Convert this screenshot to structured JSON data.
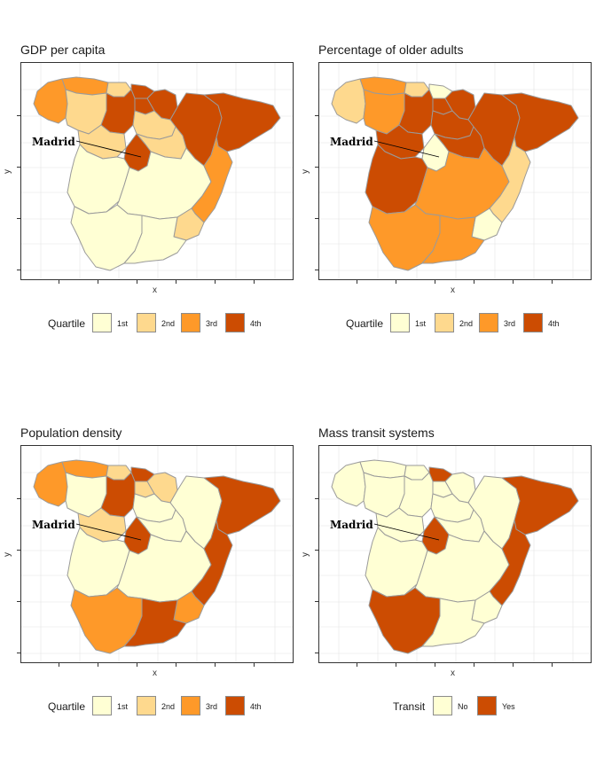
{
  "palette": {
    "q1": "#FFFFD4",
    "q2": "#FED98E",
    "q3": "#FE9929",
    "q4": "#CC4C02",
    "border": "#9a9a9a",
    "grid": "#ebebeb"
  },
  "annotation": {
    "label": "Madrid"
  },
  "axes": {
    "x_label": "x",
    "y_label": "y"
  },
  "panels": [
    {
      "title": "GDP per capita",
      "legend": {
        "title": "Quartile",
        "items": [
          {
            "label": "1st",
            "key": "q1"
          },
          {
            "label": "2nd",
            "key": "q2"
          },
          {
            "label": "3rd",
            "key": "q3"
          },
          {
            "label": "4th",
            "key": "q4"
          }
        ]
      },
      "regions": {
        "galicia": "q3",
        "asturias": "q3",
        "cantabria": "q2",
        "basque": "q4",
        "navarra": "q4",
        "rioja": "q4",
        "aragon": "q4",
        "catalonia": "q4",
        "leon": "q2",
        "burgos": "q4",
        "valladolid": "q2",
        "soria": "q2",
        "madrid": "q4",
        "extremadura": "q1",
        "castilla_mancha": "q1",
        "valencia": "q3",
        "andalusia_w": "q1",
        "andalusia_e": "q1",
        "murcia": "q2",
        "guadalajara": "q2"
      }
    },
    {
      "title": "Percentage of older adults",
      "legend": {
        "title": "Quartile",
        "items": [
          {
            "label": "1st",
            "key": "q1"
          },
          {
            "label": "2nd",
            "key": "q2"
          },
          {
            "label": "3rd",
            "key": "q3"
          },
          {
            "label": "4th",
            "key": "q4"
          }
        ]
      },
      "regions": {
        "galicia": "q2",
        "asturias": "q3",
        "cantabria": "q2",
        "basque": "q1",
        "navarra": "q4",
        "rioja": "q4",
        "aragon": "q4",
        "catalonia": "q4",
        "leon": "q3",
        "burgos": "q4",
        "valladolid": "q4",
        "soria": "q4",
        "madrid": "q1",
        "extremadura": "q4",
        "castilla_mancha": "q3",
        "valencia": "q2",
        "andalusia_w": "q3",
        "andalusia_e": "q3",
        "murcia": "q1",
        "guadalajara": "q4"
      }
    },
    {
      "title": "Population density",
      "legend": {
        "title": "Quartile",
        "items": [
          {
            "label": "1st",
            "key": "q1"
          },
          {
            "label": "2nd",
            "key": "q2"
          },
          {
            "label": "3rd",
            "key": "q3"
          },
          {
            "label": "4th",
            "key": "q4"
          }
        ]
      },
      "regions": {
        "galicia": "q3",
        "asturias": "q3",
        "cantabria": "q2",
        "basque": "q4",
        "navarra": "q2",
        "rioja": "q2",
        "aragon": "q1",
        "catalonia": "q4",
        "leon": "q1",
        "burgos": "q4",
        "valladolid": "q2",
        "soria": "q1",
        "madrid": "q4",
        "extremadura": "q1",
        "castilla_mancha": "q1",
        "valencia": "q4",
        "andalusia_w": "q3",
        "andalusia_e": "q4",
        "murcia": "q3",
        "guadalajara": "q1"
      }
    },
    {
      "title": "Mass transit systems",
      "legend": {
        "title": "Transit",
        "items": [
          {
            "label": "No",
            "key": "q1"
          },
          {
            "label": "Yes",
            "key": "q4"
          }
        ]
      },
      "regions": {
        "galicia": "q1",
        "asturias": "q1",
        "cantabria": "q1",
        "basque": "q4",
        "navarra": "q1",
        "rioja": "q1",
        "aragon": "q1",
        "catalonia": "q4",
        "leon": "q1",
        "burgos": "q1",
        "valladolid": "q1",
        "soria": "q1",
        "madrid": "q4",
        "extremadura": "q1",
        "castilla_mancha": "q1",
        "valencia": "q4",
        "andalusia_w": "q4",
        "andalusia_e": "q1",
        "murcia": "q1",
        "guadalajara": "q1"
      }
    }
  ]
}
